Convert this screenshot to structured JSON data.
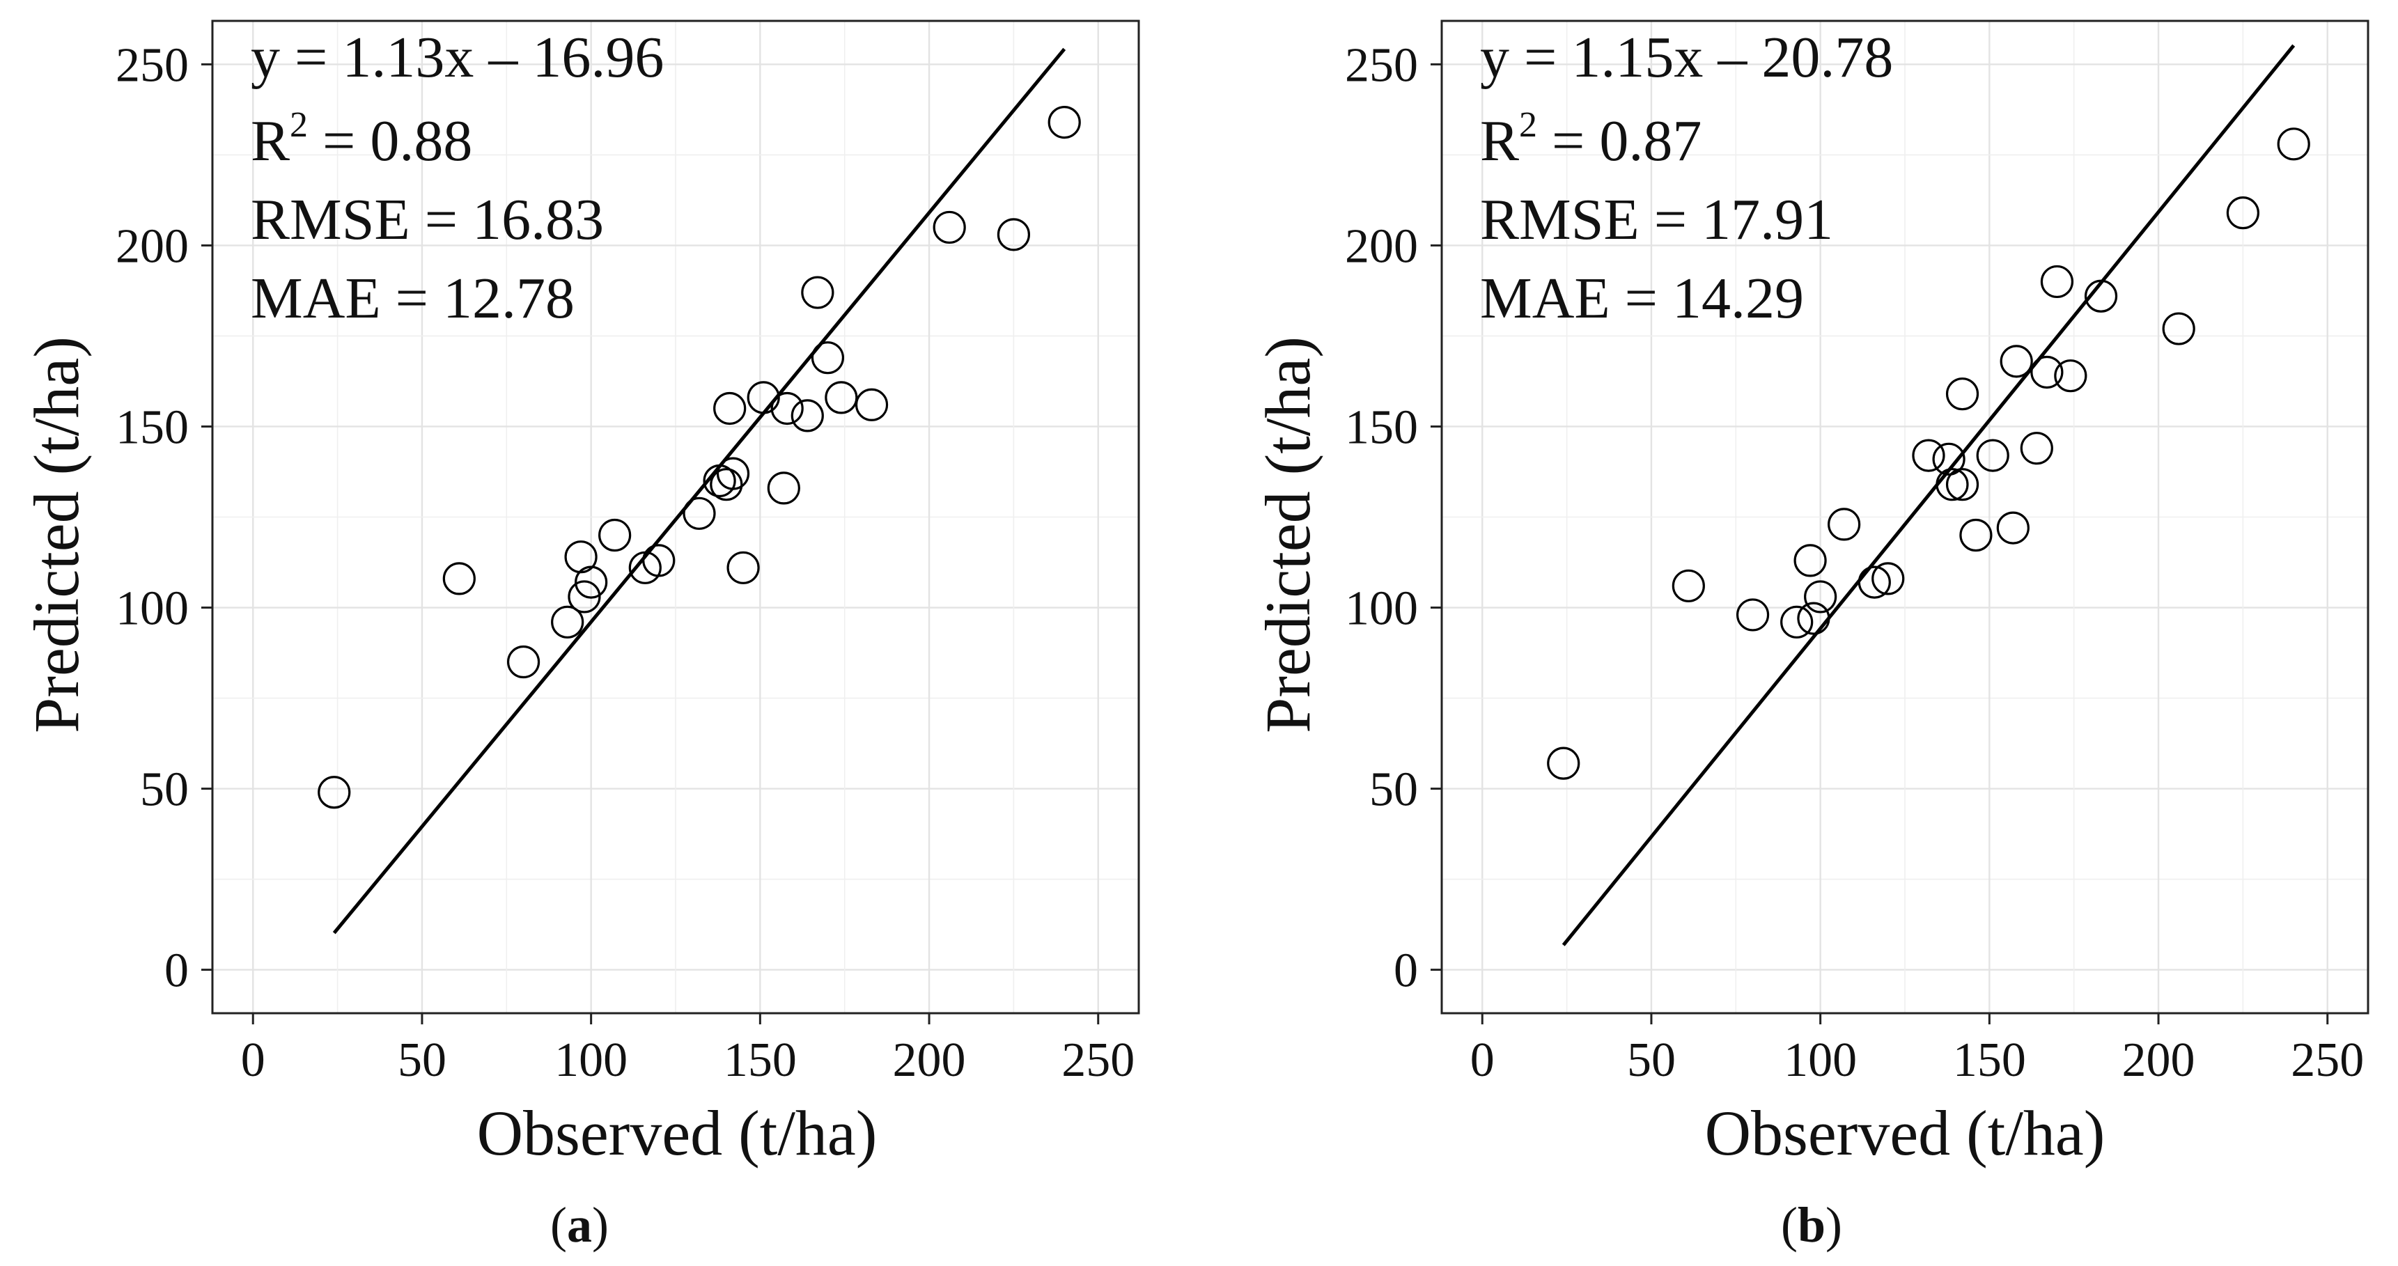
{
  "chart_data": [
    {
      "type": "scatter",
      "panel_label": "a",
      "xlabel": "Observed (t/ha)",
      "ylabel": "Predicted (t/ha)",
      "xlim": [
        -12,
        262
      ],
      "ylim": [
        -12,
        262
      ],
      "x_ticks": [
        "0",
        "50",
        "100",
        "150",
        "200",
        "250"
      ],
      "y_ticks": [
        "0",
        "50",
        "100",
        "150",
        "200",
        "250"
      ],
      "grid": true,
      "annotations": {
        "equation": "y = 1.13x – 16.96",
        "r2_prefix": "R",
        "r2_superscript": "2",
        "r2_value": " = 0.88",
        "rmse": "RMSE = 16.83",
        "mae": "MAE = 12.78"
      },
      "fit_line": {
        "slope": 1.13,
        "intercept": -16.96,
        "x_range": [
          24,
          240
        ]
      },
      "points": [
        [
          24,
          49
        ],
        [
          61,
          108
        ],
        [
          80,
          85
        ],
        [
          93,
          96
        ],
        [
          97,
          114
        ],
        [
          98,
          103
        ],
        [
          100,
          107
        ],
        [
          107,
          120
        ],
        [
          116,
          111
        ],
        [
          120,
          113
        ],
        [
          132,
          126
        ],
        [
          138,
          135
        ],
        [
          140,
          134
        ],
        [
          142,
          137
        ],
        [
          141,
          155
        ],
        [
          145,
          111
        ],
        [
          151,
          158
        ],
        [
          157,
          133
        ],
        [
          158,
          155
        ],
        [
          164,
          153
        ],
        [
          167,
          187
        ],
        [
          170,
          169
        ],
        [
          174,
          158
        ],
        [
          183,
          156
        ],
        [
          206,
          205
        ],
        [
          225,
          203
        ],
        [
          240,
          234
        ]
      ]
    },
    {
      "type": "scatter",
      "panel_label": "b",
      "xlabel": "Observed (t/ha)",
      "ylabel": "Predicted (t/ha)",
      "xlim": [
        -12,
        262
      ],
      "ylim": [
        -12,
        262
      ],
      "x_ticks": [
        "0",
        "50",
        "100",
        "150",
        "200",
        "250"
      ],
      "y_ticks": [
        "0",
        "50",
        "100",
        "150",
        "200",
        "250"
      ],
      "grid": true,
      "annotations": {
        "equation": "y = 1.15x – 20.78",
        "r2_prefix": "R",
        "r2_superscript": "2",
        "r2_value": " = 0.87",
        "rmse": "RMSE = 17.91",
        "mae": "MAE = 14.29"
      },
      "fit_line": {
        "slope": 1.15,
        "intercept": -20.78,
        "x_range": [
          24,
          240
        ]
      },
      "points": [
        [
          24,
          57
        ],
        [
          61,
          106
        ],
        [
          80,
          98
        ],
        [
          93,
          96
        ],
        [
          97,
          113
        ],
        [
          98,
          97
        ],
        [
          100,
          103
        ],
        [
          107,
          123
        ],
        [
          116,
          107
        ],
        [
          120,
          108
        ],
        [
          132,
          142
        ],
        [
          138,
          141
        ],
        [
          139,
          134
        ],
        [
          142,
          134
        ],
        [
          142,
          159
        ],
        [
          146,
          120
        ],
        [
          151,
          142
        ],
        [
          157,
          122
        ],
        [
          158,
          168
        ],
        [
          164,
          144
        ],
        [
          167,
          165
        ],
        [
          170,
          190
        ],
        [
          174,
          164
        ],
        [
          183,
          186
        ],
        [
          206,
          177
        ],
        [
          225,
          209
        ],
        [
          240,
          228
        ]
      ]
    }
  ]
}
